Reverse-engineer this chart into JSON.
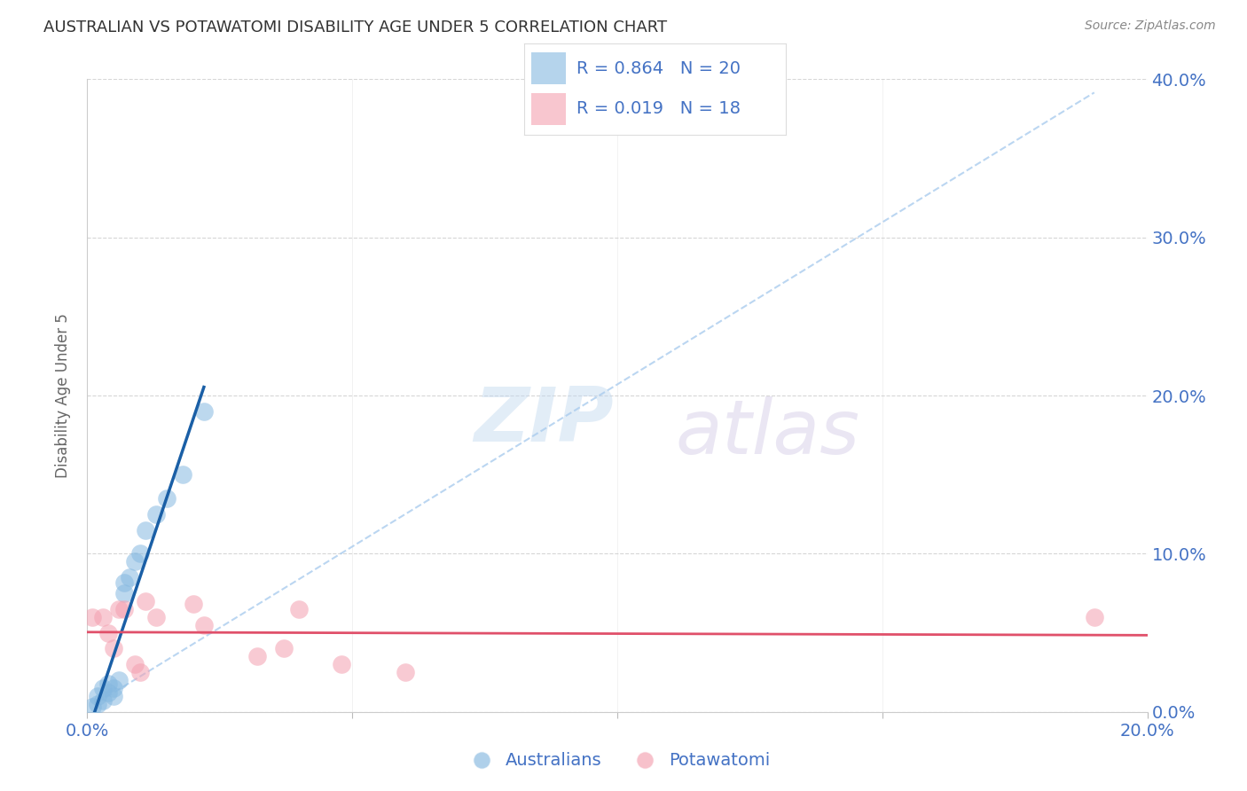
{
  "title": "AUSTRALIAN VS POTAWATOMI DISABILITY AGE UNDER 5 CORRELATION CHART",
  "source": "Source: ZipAtlas.com",
  "ylabel": "Disability Age Under 5",
  "xlim": [
    0.0,
    0.2
  ],
  "ylim": [
    0.0,
    0.4
  ],
  "xtick_positions": [
    0.0,
    0.05,
    0.1,
    0.15,
    0.2
  ],
  "ytick_positions": [
    0.0,
    0.1,
    0.2,
    0.3,
    0.4
  ],
  "blue_scatter_color": "#85b8e0",
  "pink_scatter_color": "#f4a0b0",
  "blue_line_color": "#1a5fa6",
  "pink_line_color": "#e0506a",
  "dashed_line_color": "#aaccee",
  "axis_label_color": "#4472C4",
  "title_color": "#333333",
  "source_color": "#888888",
  "grid_color": "#cccccc",
  "background_color": "#ffffff",
  "legend_R1": "R = 0.864",
  "legend_N1": "N = 20",
  "legend_R2": "R = 0.019",
  "legend_N2": "N = 18",
  "legend_label1": "Australians",
  "legend_label2": "Potawatomi",
  "australians_x": [
    0.001,
    0.002,
    0.002,
    0.003,
    0.003,
    0.004,
    0.004,
    0.005,
    0.005,
    0.006,
    0.007,
    0.007,
    0.008,
    0.009,
    0.01,
    0.011,
    0.013,
    0.015,
    0.018,
    0.022
  ],
  "australians_y": [
    0.003,
    0.005,
    0.01,
    0.007,
    0.015,
    0.012,
    0.018,
    0.01,
    0.015,
    0.02,
    0.075,
    0.082,
    0.085,
    0.095,
    0.1,
    0.115,
    0.125,
    0.135,
    0.15,
    0.19
  ],
  "potawatomi_x": [
    0.001,
    0.003,
    0.004,
    0.005,
    0.006,
    0.007,
    0.009,
    0.01,
    0.011,
    0.013,
    0.02,
    0.022,
    0.032,
    0.037,
    0.04,
    0.048,
    0.06,
    0.19
  ],
  "potawatomi_y": [
    0.06,
    0.06,
    0.05,
    0.04,
    0.065,
    0.065,
    0.03,
    0.025,
    0.07,
    0.06,
    0.068,
    0.055,
    0.035,
    0.04,
    0.065,
    0.03,
    0.025,
    0.06
  ],
  "title_fontsize": 13,
  "source_fontsize": 10,
  "tick_label_fontsize": 14,
  "ylabel_fontsize": 12,
  "legend_fontsize": 14
}
